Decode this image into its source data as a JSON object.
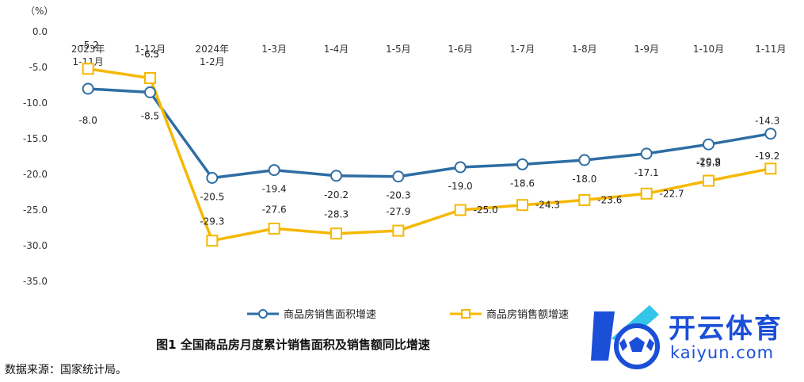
{
  "chart_data": {
    "type": "line",
    "unit_label": "（%）",
    "categories": [
      "2023年\n1-11月",
      "1-12月",
      "2024年\n1-2月",
      "1-3月",
      "1-4月",
      "1-5月",
      "1-6月",
      "1-7月",
      "1-8月",
      "1-9月",
      "1-10月",
      "1-11月"
    ],
    "ylim": [
      -35,
      0
    ],
    "yticks": [
      0,
      -5,
      -10,
      -15,
      -20,
      -25,
      -30,
      -35
    ],
    "ytick_labels": [
      "0.0",
      "-5.0",
      "-10.0",
      "-15.0",
      "-20.0",
      "-25.0",
      "-30.0",
      "-35.0"
    ],
    "series": [
      {
        "name": "商品房销售面积增速",
        "color": "#2e6da4",
        "marker": "circle",
        "values": [
          -8.0,
          -8.5,
          -20.5,
          -19.4,
          -20.2,
          -20.3,
          -19.0,
          -18.6,
          -18.0,
          -17.1,
          -15.8,
          -14.3
        ],
        "labels": [
          "-8.0",
          "-8.5",
          "-20.5",
          "-19.4",
          "-20.2",
          "-20.3",
          "-19.0",
          "-18.6",
          "-18.0",
          "-17.1",
          "-15.8",
          "-14.3"
        ]
      },
      {
        "name": "商品房销售额增速",
        "color": "#f5b800",
        "marker": "square",
        "values": [
          -5.2,
          -6.5,
          -29.3,
          -27.6,
          -28.3,
          -27.9,
          -25.0,
          -24.3,
          -23.6,
          -22.7,
          -20.9,
          -19.2
        ],
        "labels": [
          "-5.2",
          "-6.5",
          "-29.3",
          "-27.6",
          "-28.3",
          "-27.9",
          "-25.0",
          "-24.3",
          "-23.6",
          "-22.7",
          "-20.9",
          "-19.2"
        ]
      }
    ],
    "title": "图1  全国商品房月度累计销售面积及销售额同比增速",
    "legend_position": "bottom"
  },
  "source": "数据来源：国家统计局。",
  "watermark": {
    "cn": "开云体育",
    "en": "kaiyun.com",
    "colors": {
      "primary": "#1b4fd8",
      "secondary": "#34c6e8"
    }
  }
}
